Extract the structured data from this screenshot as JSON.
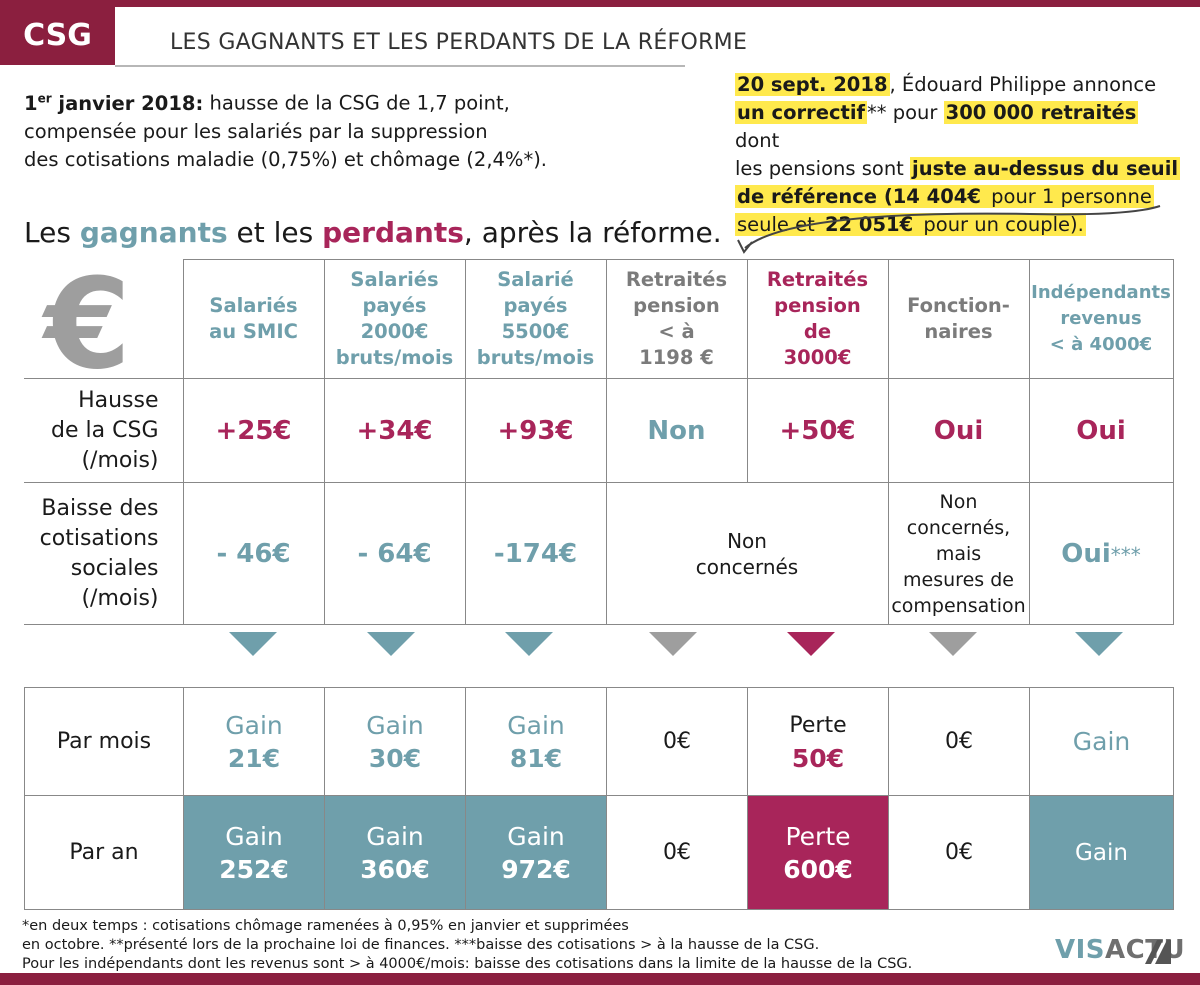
{
  "header": {
    "tag": "CSG",
    "title": "LES GAGNANTS ET LES PERDANTS DE LA RÉFORME"
  },
  "intro": {
    "date_main": "1",
    "date_sup": "er",
    "date_rest": " janvier 2018:",
    "line1_rest": " hausse de la CSG de 1,7 point,",
    "line2": "compensée pour les salariés par la suppression",
    "line3": "des cotisations maladie (0,75%) et chômage (2,4%*)."
  },
  "note": {
    "p1": "20 sept. 2018",
    "p2": ", Édouard Philippe annonce",
    "p3": "un correctif",
    "p4": "** pour ",
    "p5": "300 000 retraités",
    "p6": " dont",
    "p7": "les pensions sont ",
    "p8": "juste au-dessus du seuil",
    "p9": "de référence (14 404€",
    "p10": " pour 1 personne",
    "p11": "seule et ",
    "p12": "22 051€",
    "p13": " pour un couple)."
  },
  "subtitle": {
    "a": "Les ",
    "gagnants": "gagnants",
    "b": " et les ",
    "perdants": "perdants",
    "c": ", après la réforme."
  },
  "euro_symbol": "€",
  "columns": [
    {
      "l1": "Salariés",
      "l2": "au SMIC",
      "l3": "",
      "l4": "",
      "color": "teal"
    },
    {
      "l1": "Salariés",
      "l2": "payés",
      "l3": "2000€",
      "l4": "bruts/mois",
      "color": "teal"
    },
    {
      "l1": "Salarié",
      "l2": "payés",
      "l3": "5500€",
      "l4": "bruts/mois",
      "color": "teal"
    },
    {
      "l1": "Retraités",
      "l2": "pension",
      "l3": "< à",
      "l4": "1198 €",
      "color": "gray"
    },
    {
      "l1": "Retraités",
      "l2": "pension",
      "l3": "de",
      "l4": "3000€",
      "color": "crimson"
    },
    {
      "l1": "Fonction-",
      "l2": "naires",
      "l3": "",
      "l4": "",
      "color": "gray"
    },
    {
      "l1": "Indépendants",
      "l2": "revenus",
      "l3": "< à 4000€",
      "l4": "",
      "color": "teal"
    }
  ],
  "rows": {
    "hausse_label": [
      "Hausse",
      "de la CSG",
      "(/mois)"
    ],
    "hausse_values": [
      "+25€",
      "+34€",
      "+93€",
      "Non",
      "+50€",
      "Oui",
      "Oui"
    ],
    "baisse_label": [
      "Baisse des",
      "cotisations",
      "sociales",
      "(/mois)"
    ],
    "baisse_values": [
      "- 46€",
      "- 64€",
      "-174€"
    ],
    "baisse_retraites": [
      "Non",
      "concernés"
    ],
    "baisse_fonctionnaires": [
      "Non",
      "concernés,",
      "mais",
      "mesures de",
      "compensation"
    ],
    "baisse_independants": "Oui",
    "baisse_independants_stars": "***"
  },
  "arrow_colors": [
    "#6f9fab",
    "#6f9fab",
    "#6f9fab",
    "#9e9e9e",
    "#a8255a",
    "#9e9e9e",
    "#6f9fab"
  ],
  "results": {
    "par_mois_label": "Par mois",
    "par_an_label": "Par an",
    "par_mois": [
      {
        "word": "Gain",
        "amount": "21€"
      },
      {
        "word": "Gain",
        "amount": "30€"
      },
      {
        "word": "Gain",
        "amount": "81€"
      },
      {
        "word": "0€",
        "amount": ""
      },
      {
        "word": "Perte",
        "amount": "50€"
      },
      {
        "word": "0€",
        "amount": ""
      },
      {
        "word": "Gain",
        "amount": ""
      }
    ],
    "par_an": [
      {
        "word": "Gain",
        "amount": "252€"
      },
      {
        "word": "Gain",
        "amount": "360€"
      },
      {
        "word": "Gain",
        "amount": "972€"
      },
      {
        "word": "0€",
        "amount": ""
      },
      {
        "word": "Perte",
        "amount": "600€"
      },
      {
        "word": "0€",
        "amount": ""
      },
      {
        "word": "Gain",
        "amount": ""
      }
    ]
  },
  "footnotes": {
    "l1": "*en deux temps : cotisations chômage ramenées à 0,95% en janvier et supprimées",
    "l2": "en octobre. **présenté lors de la prochaine loi de finances. ***baisse des cotisations > à la hausse de la CSG.",
    "l3": "Pour les indépendants dont les revenus sont > à 4000€/mois: baisse des cotisations dans la limite de la hausse de la CSG."
  },
  "logo": {
    "vis": "VIS",
    "actu": "ACTU"
  },
  "colors": {
    "crimson": "#8b1f3f",
    "teal": "#6f9fab",
    "highlight": "#ffe94d",
    "gray": "#9e9e9e"
  }
}
